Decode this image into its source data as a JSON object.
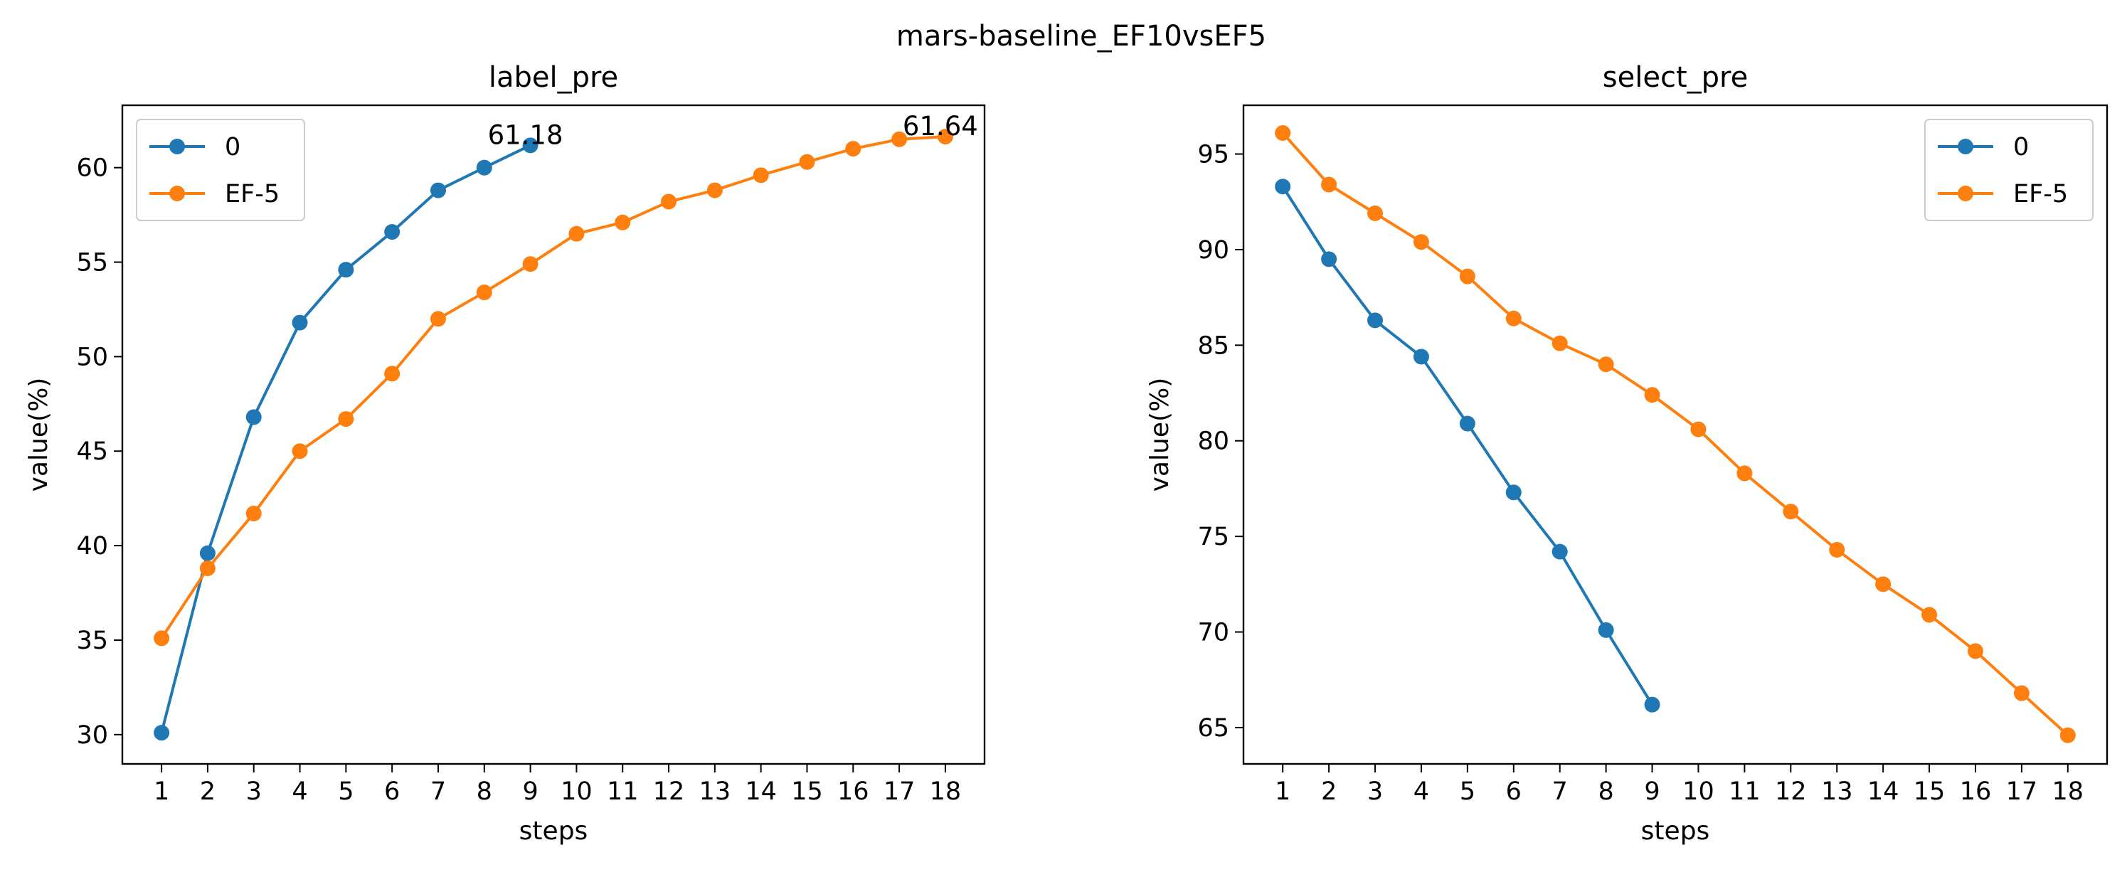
{
  "suptitle": "mars-baseline_EF10vsEF5",
  "chart_data": [
    {
      "type": "line",
      "title": "label_pre",
      "xlabel": "steps",
      "ylabel": "value(%)",
      "xlim": [
        0.15,
        18.85
      ],
      "ylim": [
        28.45,
        63.3
      ],
      "xticks": [
        1,
        2,
        3,
        4,
        5,
        6,
        7,
        8,
        9,
        10,
        11,
        12,
        13,
        14,
        15,
        16,
        17,
        18
      ],
      "yticks": [
        30,
        35,
        40,
        45,
        50,
        55,
        60
      ],
      "legend": "upper left",
      "series": [
        {
          "name": "0",
          "color": "#1f77b4",
          "x": [
            1,
            2,
            3,
            4,
            5,
            6,
            7,
            8,
            9
          ],
          "y": [
            30.1,
            39.6,
            46.8,
            51.8,
            54.6,
            56.6,
            58.8,
            60.0,
            61.18
          ]
        },
        {
          "name": "EF-5",
          "color": "#ff7f0e",
          "x": [
            1,
            2,
            3,
            4,
            5,
            6,
            7,
            8,
            9,
            10,
            11,
            12,
            13,
            14,
            15,
            16,
            17,
            18
          ],
          "y": [
            35.1,
            38.8,
            41.7,
            45.0,
            46.7,
            49.1,
            52.0,
            53.4,
            54.9,
            56.5,
            57.1,
            58.2,
            58.8,
            59.6,
            60.3,
            61.0,
            61.5,
            61.64
          ]
        }
      ],
      "annotations": [
        {
          "x": 9,
          "y": 61.18,
          "text": "61.18"
        },
        {
          "x": 18,
          "y": 61.64,
          "text": "61.64"
        }
      ]
    },
    {
      "type": "line",
      "title": "select_pre",
      "xlabel": "steps",
      "ylabel": "value(%)",
      "xlim": [
        0.15,
        18.85
      ],
      "ylim": [
        63.1,
        97.55
      ],
      "xticks": [
        1,
        2,
        3,
        4,
        5,
        6,
        7,
        8,
        9,
        10,
        11,
        12,
        13,
        14,
        15,
        16,
        17,
        18
      ],
      "yticks": [
        65,
        70,
        75,
        80,
        85,
        90,
        95
      ],
      "legend": "upper right",
      "series": [
        {
          "name": "0",
          "color": "#1f77b4",
          "x": [
            1,
            2,
            3,
            4,
            5,
            6,
            7,
            8,
            9
          ],
          "y": [
            93.3,
            89.5,
            86.3,
            84.4,
            80.9,
            77.3,
            74.2,
            70.1,
            66.2
          ]
        },
        {
          "name": "EF-5",
          "color": "#ff7f0e",
          "x": [
            1,
            2,
            3,
            4,
            5,
            6,
            7,
            8,
            9,
            10,
            11,
            12,
            13,
            14,
            15,
            16,
            17,
            18
          ],
          "y": [
            96.1,
            93.4,
            91.9,
            90.4,
            88.6,
            86.4,
            85.1,
            84.0,
            82.4,
            80.6,
            78.3,
            76.3,
            74.3,
            72.5,
            70.9,
            69.0,
            66.8,
            64.6
          ]
        }
      ],
      "annotations": []
    }
  ]
}
